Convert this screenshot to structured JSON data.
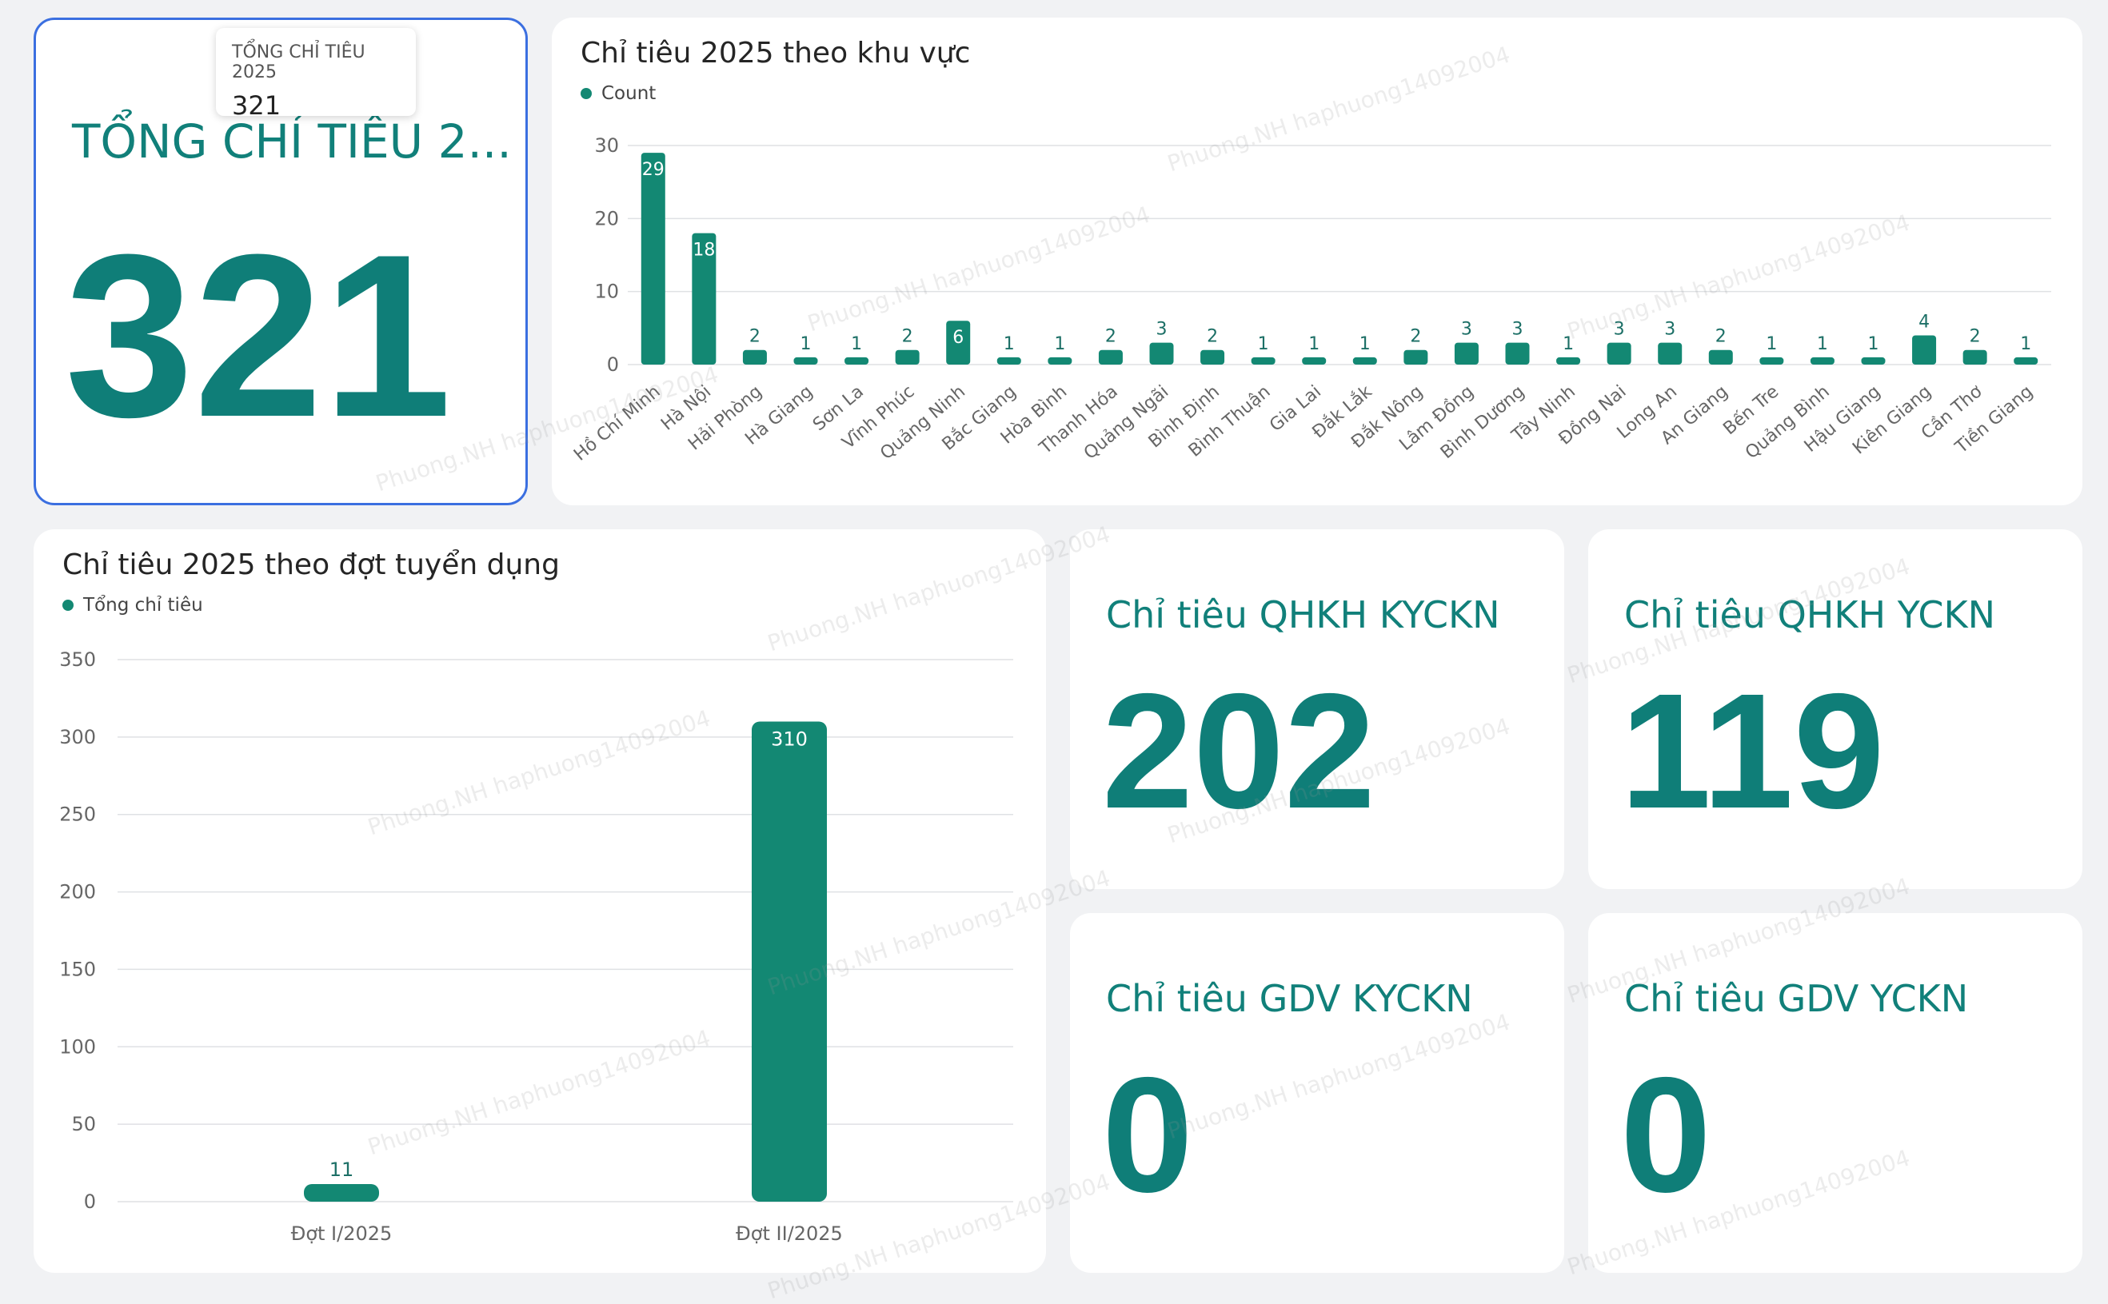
{
  "total_card": {
    "title": "TỔNG CHỈ TIÊU 2...",
    "value": "321",
    "tooltip_label": "TỔNG CHỈ TIÊU 2025",
    "tooltip_value": "321"
  },
  "region_chart": {
    "title": "Chỉ tiêu 2025 theo khu vực",
    "legend": "Count"
  },
  "round_chart": {
    "title": "Chỉ tiêu 2025 theo đợt tuyển dụng",
    "legend": "Tổng chỉ tiêu"
  },
  "kpis": {
    "qhkh_kyckn": {
      "title": "Chỉ tiêu QHKH KYCKN",
      "value": "202"
    },
    "qhkh_yckn": {
      "title": "Chỉ tiêu QHKH YCKN",
      "value": "119"
    },
    "gdv_kyckn": {
      "title": "Chỉ tiêu GDV KYCKN",
      "value": "0"
    },
    "gdv_yckn": {
      "title": "Chỉ tiêu GDV YCKN",
      "value": "0"
    }
  },
  "watermark_text": "Phuong.NH haphuong14092004",
  "colors": {
    "bar": "#138873",
    "accent": "#11807a",
    "selected_border": "#3b6fe0"
  },
  "chart_data": [
    {
      "type": "bar",
      "title": "Chỉ tiêu 2025 theo khu vực",
      "series": [
        {
          "name": "Count",
          "values": [
            29,
            18,
            2,
            1,
            1,
            2,
            6,
            1,
            1,
            2,
            3,
            2,
            1,
            1,
            1,
            2,
            3,
            3,
            1,
            3,
            3,
            2,
            1,
            1,
            1,
            4,
            2,
            1
          ]
        }
      ],
      "categories": [
        "Hồ Chí Minh",
        "Hà Nội",
        "Hải Phòng",
        "Hà Giang",
        "Sơn La",
        "Vĩnh Phúc",
        "Quảng Ninh",
        "Bắc Giang",
        "Hòa Bình",
        "Thanh Hóa",
        "Quảng Ngãi",
        "Bình Định",
        "Bình Thuận",
        "Gia Lai",
        "Đắk Lắk",
        "Đắk Nông",
        "Lâm Đồng",
        "Bình Dương",
        "Tây Ninh",
        "Đồng Nai",
        "Long An",
        "An Giang",
        "Bến Tre",
        "Quảng Bình",
        "Hậu Giang",
        "Kiên Giang",
        "Cần Thơ",
        "Tiền Giang"
      ],
      "y_ticks": [
        0,
        10,
        20,
        30
      ],
      "ylim": [
        0,
        30
      ],
      "grid": true,
      "legend_position": "top-left"
    },
    {
      "type": "bar",
      "title": "Chỉ tiêu 2025 theo đợt tuyển dụng",
      "series": [
        {
          "name": "Tổng chỉ tiêu",
          "values": [
            11,
            310
          ]
        }
      ],
      "categories": [
        "Đợt I/2025",
        "Đợt II/2025"
      ],
      "y_ticks": [
        0,
        50,
        100,
        150,
        200,
        250,
        300,
        350
      ],
      "ylim": [
        0,
        350
      ],
      "grid": true,
      "legend_position": "top-left"
    }
  ]
}
